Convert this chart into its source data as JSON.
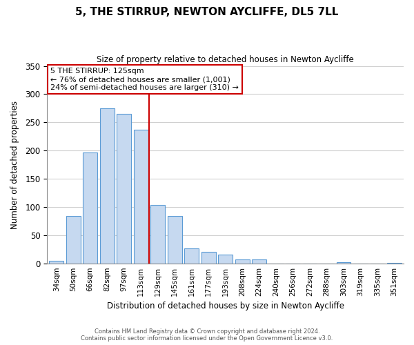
{
  "title": "5, THE STIRRUP, NEWTON AYCLIFFE, DL5 7LL",
  "subtitle": "Size of property relative to detached houses in Newton Aycliffe",
  "xlabel": "Distribution of detached houses by size in Newton Aycliffe",
  "ylabel": "Number of detached properties",
  "bar_labels": [
    "34sqm",
    "50sqm",
    "66sqm",
    "82sqm",
    "97sqm",
    "113sqm",
    "129sqm",
    "145sqm",
    "161sqm",
    "177sqm",
    "193sqm",
    "208sqm",
    "224sqm",
    "240sqm",
    "256sqm",
    "272sqm",
    "288sqm",
    "303sqm",
    "319sqm",
    "335sqm",
    "351sqm"
  ],
  "bar_values": [
    5,
    84,
    196,
    275,
    265,
    237,
    104,
    84,
    27,
    20,
    15,
    7,
    7,
    0,
    0,
    0,
    0,
    2,
    0,
    0,
    1
  ],
  "bar_color": "#c6d9f0",
  "bar_edge_color": "#5b9bd5",
  "ylim": [
    0,
    350
  ],
  "yticks": [
    0,
    50,
    100,
    150,
    200,
    250,
    300,
    350
  ],
  "vline_x_index": 6,
  "vline_color": "#cc0000",
  "annotation_title": "5 THE STIRRUP: 125sqm",
  "annotation_line1": "← 76% of detached houses are smaller (1,001)",
  "annotation_line2": "24% of semi-detached houses are larger (310) →",
  "annotation_box_color": "#ffffff",
  "annotation_box_edge": "#cc0000",
  "footer_line1": "Contains HM Land Registry data © Crown copyright and database right 2024.",
  "footer_line2": "Contains public sector information licensed under the Open Government Licence v3.0.",
  "background_color": "#ffffff",
  "grid_color": "#d0d0d0"
}
